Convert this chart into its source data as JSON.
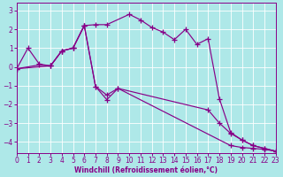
{
  "xlabel": "Windchill (Refroidissement éolien,°C)",
  "bg_color": "#aee8e8",
  "line_color": "#880088",
  "grid_color": "#ffffff",
  "xlim": [
    0,
    23
  ],
  "ylim": [
    -4.6,
    3.4
  ],
  "xticks": [
    0,
    1,
    2,
    3,
    4,
    5,
    6,
    7,
    8,
    9,
    10,
    11,
    12,
    13,
    14,
    15,
    16,
    17,
    18,
    19,
    20,
    21,
    22,
    23
  ],
  "yticks": [
    -4,
    -3,
    -2,
    -1,
    0,
    1,
    2,
    3
  ],
  "line1_x": [
    0,
    1,
    2,
    3,
    4,
    5,
    6,
    7,
    8,
    10,
    11,
    12,
    13,
    14,
    15,
    16,
    17,
    18,
    19,
    20,
    21,
    22,
    23
  ],
  "line1_y": [
    -0.1,
    1.0,
    0.15,
    0.05,
    0.85,
    1.0,
    2.2,
    2.25,
    2.25,
    2.8,
    2.5,
    2.1,
    1.85,
    1.45,
    2.0,
    1.2,
    1.5,
    -1.7,
    -3.5,
    -3.9,
    -4.2,
    -4.35,
    -4.5
  ],
  "line2_x": [
    0,
    2,
    3,
    4,
    5,
    6,
    7,
    8,
    9,
    17,
    18,
    19,
    20,
    21,
    22,
    23
  ],
  "line2_y": [
    -0.1,
    0.1,
    0.05,
    0.85,
    1.0,
    2.2,
    -1.05,
    -1.5,
    -1.15,
    -2.3,
    -3.0,
    -3.55,
    -3.9,
    -4.2,
    -4.35,
    -4.5
  ],
  "line3_x": [
    0,
    3,
    4,
    5,
    6,
    7,
    8,
    9,
    19,
    20,
    21,
    22,
    23
  ],
  "line3_y": [
    -0.1,
    0.05,
    0.85,
    1.0,
    2.2,
    -1.05,
    -1.75,
    -1.15,
    -4.2,
    -4.3,
    -4.35,
    -4.4,
    -4.5
  ]
}
